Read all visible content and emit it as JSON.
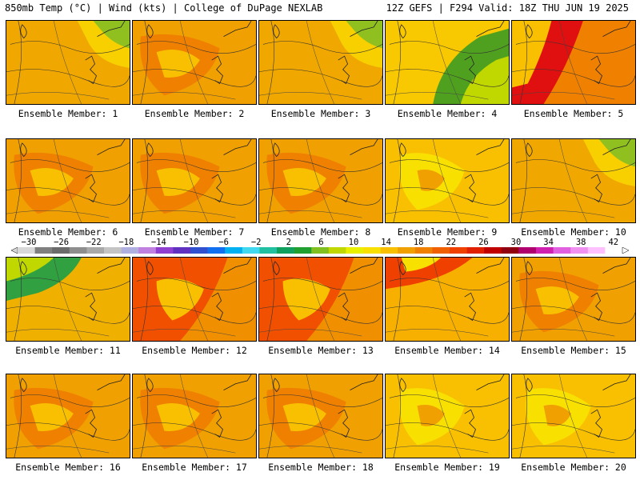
{
  "header": {
    "left": "850mb Temp (°C) | Wind (kts) | College of DuPage NEXLAB",
    "right": "12Z GEFS | F294 Valid: 18Z THU JUN 19 2025"
  },
  "colorbar": {
    "labels": [
      "−30",
      "−26",
      "−22",
      "−18",
      "−14",
      "−10",
      "−6",
      "−2",
      "2",
      "6",
      "10",
      "14",
      "18",
      "22",
      "26",
      "30",
      "34",
      "38",
      "42"
    ],
    "colors": [
      "#d8d8d8",
      "#7f7f7f",
      "#6b6b6b",
      "#8e8e8e",
      "#a9a9a9",
      "#c4c4c4",
      "#b0b0e0",
      "#c080e0",
      "#9040d0",
      "#6030c0",
      "#3050d0",
      "#1070f0",
      "#00b0f0",
      "#40d8f0",
      "#20c0a0",
      "#10a060",
      "#20a030",
      "#80c020",
      "#c0d800",
      "#e8f000",
      "#f8e000",
      "#f8c000",
      "#f0a000",
      "#f08000",
      "#f06000",
      "#f04000",
      "#e02000",
      "#c00000",
      "#900010",
      "#b00070",
      "#d020b0",
      "#e060e0",
      "#f090f0",
      "#ffc0ff",
      "#ffffff"
    ]
  },
  "panels": [
    {
      "label": "Ensemble Member: 1",
      "tone": "cool-ne"
    },
    {
      "label": "Ensemble Member: 2",
      "tone": "warm"
    },
    {
      "label": "Ensemble Member: 3",
      "tone": "cool-ne"
    },
    {
      "label": "Ensemble Member: 4",
      "tone": "cool-e"
    },
    {
      "label": "Ensemble Member: 5",
      "tone": "hot"
    },
    {
      "label": "Ensemble Member: 6",
      "tone": "warm"
    },
    {
      "label": "Ensemble Member: 7",
      "tone": "warm"
    },
    {
      "label": "Ensemble Member: 8",
      "tone": "warm"
    },
    {
      "label": "Ensemble Member: 9",
      "tone": "mild"
    },
    {
      "label": "Ensemble Member: 10",
      "tone": "cool-ne"
    },
    {
      "label": "Ensemble Member: 11",
      "tone": "cool-nw"
    },
    {
      "label": "Ensemble Member: 12",
      "tone": "hot-w"
    },
    {
      "label": "Ensemble Member: 13",
      "tone": "hot-w"
    },
    {
      "label": "Ensemble Member: 14",
      "tone": "hot-n"
    },
    {
      "label": "Ensemble Member: 15",
      "tone": "warm"
    },
    {
      "label": "Ensemble Member: 16",
      "tone": "warm"
    },
    {
      "label": "Ensemble Member: 17",
      "tone": "warm"
    },
    {
      "label": "Ensemble Member: 18",
      "tone": "warm"
    },
    {
      "label": "Ensemble Member: 19",
      "tone": "mild"
    },
    {
      "label": "Ensemble Member: 20",
      "tone": "mild"
    }
  ]
}
